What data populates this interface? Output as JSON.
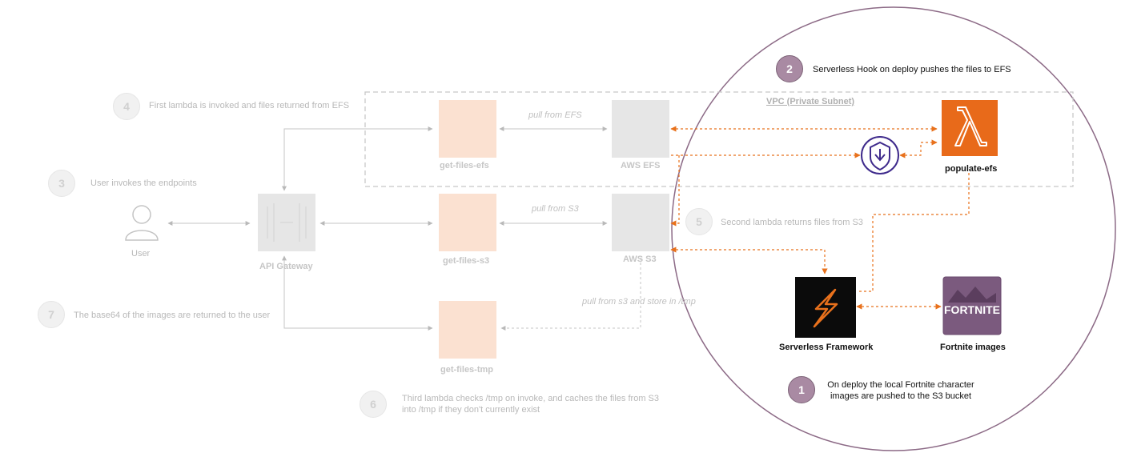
{
  "steps": {
    "s1": {
      "num": "1",
      "text_line1": "On deploy the local Fortnite character",
      "text_line2": "images are pushed to the S3 bucket"
    },
    "s2": {
      "num": "2",
      "text": "Serverless Hook on deploy pushes the files to EFS"
    },
    "s3": {
      "num": "3",
      "text": "User invokes the endpoints"
    },
    "s4": {
      "num": "4",
      "text": "First lambda is invoked and files returned from EFS"
    },
    "s5": {
      "num": "5",
      "text": "Second lambda returns files from S3"
    },
    "s6": {
      "num": "6",
      "text_line1": "Third lambda checks /tmp on invoke, and caches the files from S3",
      "text_line2": "into /tmp if they don't currently exist"
    },
    "s7": {
      "num": "7",
      "text": "The base64 of the images are returned to the user"
    }
  },
  "nodes": {
    "user": "User",
    "api_gateway": "API Gateway",
    "get_files_efs": "get-files-efs",
    "get_files_s3": "get-files-s3",
    "get_files_tmp": "get-files-tmp",
    "aws_efs": "AWS EFS",
    "aws_s3": "AWS S3",
    "populate_efs": "populate-efs",
    "serverless_framework": "Serverless Framework",
    "fortnite_images": "Fortnite images",
    "fortnite_logo_text": "FORTNITE"
  },
  "edges": {
    "pull_from_efs": "pull from EFS",
    "pull_from_s3": "pull from S3",
    "pull_from_s3_tmp": "pull from s3 and store in /tmp"
  },
  "vpc_label": "VPC (Private Subnet)",
  "colors": {
    "accent_orange": "#e8711c",
    "lambda_orange": "#e86a1a",
    "step_active": "#a98aa3",
    "circle_border": "#8c6a86",
    "faded_gray": "#bdbdbd",
    "serverless_bg": "#0b0b0b",
    "fortnite_bg": "#7b5a7e"
  }
}
